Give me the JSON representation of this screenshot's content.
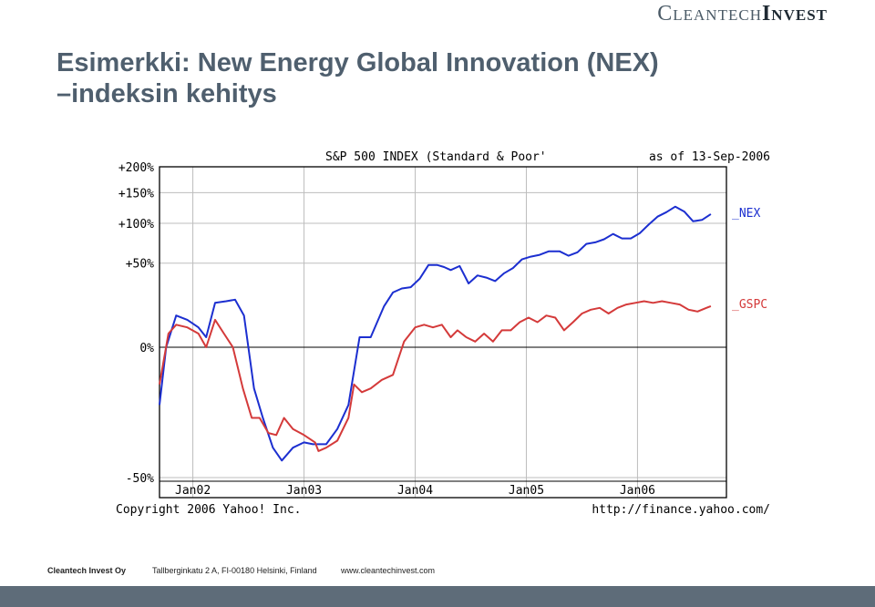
{
  "logo": {
    "part1": "Cleantech",
    "part2": "Invest"
  },
  "slide": {
    "title_line1": "Esimerkki: New Energy Global Innovation (NEX)",
    "title_line2": "–indeksin kehitys"
  },
  "chart_data": {
    "type": "line",
    "title": "S&P 500 INDEX (Standard & Poor'",
    "as_of": "as of 13-Sep-2006",
    "x_unit": "years",
    "xlim": [
      2001.7,
      2006.8
    ],
    "ylim": [
      -50,
      200
    ],
    "y_ticks": [
      -50,
      0,
      50,
      100,
      150,
      200
    ],
    "y_tick_labels": [
      "-50%",
      "0%",
      "+50%",
      "+100%",
      "+150%",
      "+200%"
    ],
    "x_ticks": [
      2002,
      2003,
      2004,
      2005,
      2006
    ],
    "x_tick_labels": [
      "Jan02",
      "Jan03",
      "Jan04",
      "Jan05",
      "Jan06"
    ],
    "grid": true,
    "legend": "right",
    "series": [
      {
        "name": "_NEX",
        "color": "#1c2fd0",
        "x": [
          2001.7,
          2001.76,
          2001.85,
          2001.95,
          2002.05,
          2002.12,
          2002.2,
          2002.3,
          2002.38,
          2002.46,
          2002.55,
          2002.63,
          2002.72,
          2002.8,
          2002.9,
          2003.0,
          2003.08,
          2003.2,
          2003.3,
          2003.4,
          2003.5,
          2003.6,
          2003.72,
          2003.8,
          2003.88,
          2003.96,
          2004.04,
          2004.12,
          2004.2,
          2004.26,
          2004.32,
          2004.4,
          2004.48,
          2004.56,
          2004.64,
          2004.72,
          2004.8,
          2004.88,
          2004.96,
          2005.04,
          2005.12,
          2005.2,
          2005.3,
          2005.38,
          2005.46,
          2005.54,
          2005.62,
          2005.7,
          2005.78,
          2005.86,
          2005.94,
          2006.02,
          2006.1,
          2006.18,
          2006.26,
          2006.34,
          2006.42,
          2006.5,
          2006.58,
          2006.66
        ],
        "values": [
          -10,
          0,
          10,
          8,
          5,
          2,
          17,
          18,
          19,
          10,
          -5,
          -15,
          -30,
          -38,
          -30,
          -27,
          -28,
          -28,
          -20,
          -10,
          2,
          2,
          15,
          24,
          27,
          28,
          35,
          48,
          48,
          46,
          43,
          47,
          31,
          38,
          36,
          33,
          40,
          45,
          54,
          57,
          59,
          63,
          63,
          58,
          62,
          72,
          74,
          78,
          85,
          79,
          79,
          86,
          98,
          110,
          117,
          126,
          118,
          103,
          105,
          114
        ]
      },
      {
        "name": "_GSPC",
        "color": "#d43a3a",
        "x": [
          2001.7,
          2001.78,
          2001.85,
          2001.95,
          2002.05,
          2002.12,
          2002.2,
          2002.28,
          2002.36,
          2002.45,
          2002.53,
          2002.6,
          2002.68,
          2002.75,
          2002.82,
          2002.9,
          2003.0,
          2003.1,
          2003.13,
          2003.2,
          2003.3,
          2003.4,
          2003.45,
          2003.52,
          2003.6,
          2003.7,
          2003.8,
          2003.9,
          2004.0,
          2004.08,
          2004.16,
          2004.24,
          2004.32,
          2004.38,
          2004.46,
          2004.54,
          2004.62,
          2004.7,
          2004.78,
          2004.86,
          2004.94,
          2005.02,
          2005.1,
          2005.18,
          2005.26,
          2005.34,
          2005.42,
          2005.5,
          2005.58,
          2005.66,
          2005.74,
          2005.82,
          2005.9,
          2005.98,
          2006.06,
          2006.14,
          2006.22,
          2006.3,
          2006.38,
          2006.46,
          2006.54,
          2006.62,
          2006.66
        ],
        "values": [
          -4,
          3,
          6,
          5,
          3,
          0,
          8,
          3,
          0,
          -5,
          -15,
          -15,
          -22,
          -23,
          -15,
          -20,
          -23,
          -27,
          -32,
          -30,
          -26,
          -15,
          -4,
          -6,
          -5,
          -3,
          -2,
          1,
          5,
          6,
          5,
          6,
          2,
          4,
          2,
          1,
          3,
          1,
          4,
          4,
          7,
          9,
          7,
          10,
          9,
          4,
          7,
          11,
          13,
          14,
          11,
          14,
          16,
          17,
          18,
          17,
          18,
          17,
          16,
          13,
          12,
          14,
          15
        ]
      }
    ],
    "copyright": "Copyright 2006 Yahoo! Inc.",
    "source_url": "http://finance.yahoo.com/"
  },
  "footer": {
    "company": "Cleantech Invest Oy",
    "address": "Tallberginkatu 2 A, FI-00180 Helsinki, Finland",
    "website": "www.cleantechinvest.com"
  }
}
